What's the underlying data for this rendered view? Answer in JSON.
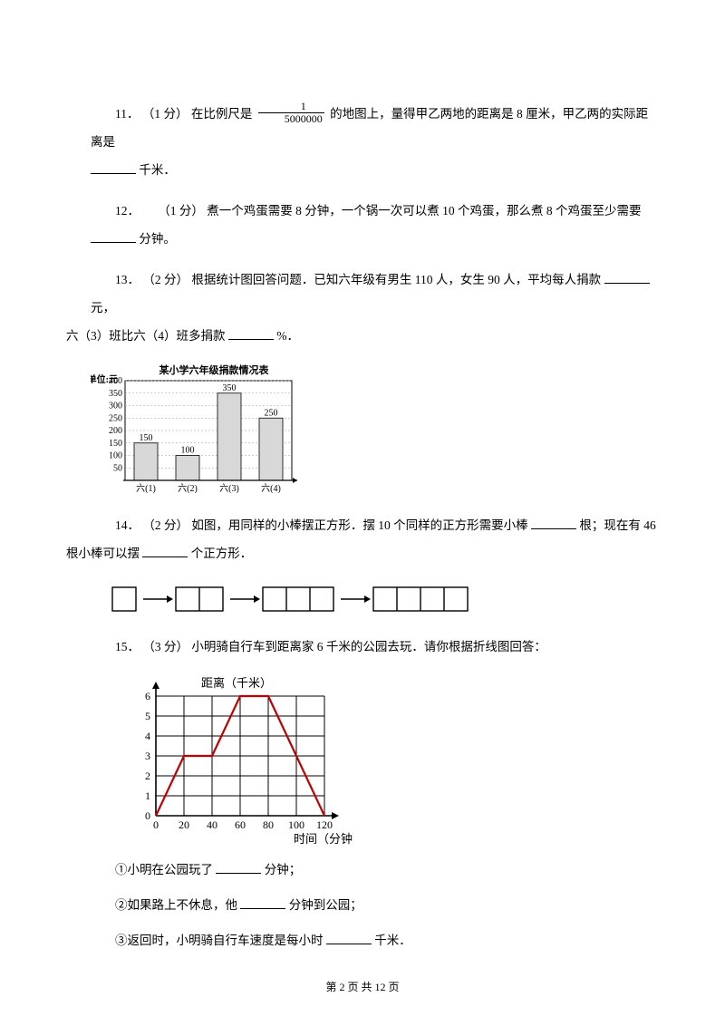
{
  "q11": {
    "num": "11．",
    "pts": "（1 分）",
    "t1": "在比例尺是",
    "frac_num": "1",
    "frac_den": "5000000",
    "t2": "的地图上，量得甲乙两地的距离是 8 厘米，甲乙两的实际距离是",
    "unit": "千米．"
  },
  "q12": {
    "num": "12．",
    "pts": "（1 分）",
    "t1": "煮一个鸡蛋需要 8 分钟，一个锅一次可以煮 10 个鸡蛋，那么煮 8 个鸡蛋至少需要",
    "unit": "分钟。"
  },
  "q13": {
    "num": "13．",
    "pts": "（2 分）",
    "t1": "根据统计图回答问题．已知六年级有男生 110 人，女生 90 人，平均每人捐款",
    "unit1": "元，",
    "t2": "六（3）班比六（4）班多捐款",
    "unit2": "%．"
  },
  "chart13": {
    "title": "某小学六年级捐款情况表",
    "ylabel": "单位:元",
    "yticks": [
      "400",
      "350",
      "300",
      "250",
      "200",
      "150",
      "100",
      "50"
    ],
    "xticks": [
      "六(1)",
      "六(2)",
      "六(3)",
      "六(4)"
    ],
    "values": [
      150,
      100,
      350,
      250
    ],
    "value_labels": [
      "150",
      "100",
      "350",
      "250"
    ],
    "max": 400,
    "grid_color": "#9a9a9a",
    "bar_color": "#d8d8d8",
    "border_color": "#000000",
    "label_fontsize": 10
  },
  "q14": {
    "num": "14．",
    "pts": "（2 分）",
    "t1": "如图，用同样的小棒摆正方形．摆 10 个同样的正方形需要小棒",
    "unit1": "根；现在有 46",
    "t2": "根小棒可以摆",
    "unit2": "个正方形．"
  },
  "fig14": {
    "groups": [
      1,
      2,
      3,
      4
    ],
    "cell_size": 26,
    "gap": 44,
    "stroke": "#000000"
  },
  "q15": {
    "num": "15．",
    "pts": "（3 分）",
    "t1": "小明骑自行车到距离家 6 千米的公园去玩．请你根据折线图回答："
  },
  "chart15": {
    "ylabel": "距离（千米）",
    "xlabel": "时间（分钟）",
    "xticks": [
      "0",
      "20",
      "40",
      "60",
      "80",
      "100",
      "120"
    ],
    "yticks": [
      "0",
      "1",
      "2",
      "3",
      "4",
      "5",
      "6"
    ],
    "points": [
      [
        0,
        0
      ],
      [
        20,
        3
      ],
      [
        40,
        3
      ],
      [
        60,
        6
      ],
      [
        80,
        6
      ],
      [
        120,
        0
      ]
    ],
    "line_color": "#c00000",
    "grid_color": "#000000",
    "label_fontsize": 12
  },
  "q15_subs": {
    "s1a": "①小明在公园玩了",
    "s1b": "分钟；",
    "s2a": "②如果路上不休息，他",
    "s2b": "分钟到公园；",
    "s3a": "③返回时，小明骑自行车速度是每小时",
    "s3b": "千米．"
  },
  "footer": {
    "a": "第 2 页 共 12 页"
  }
}
